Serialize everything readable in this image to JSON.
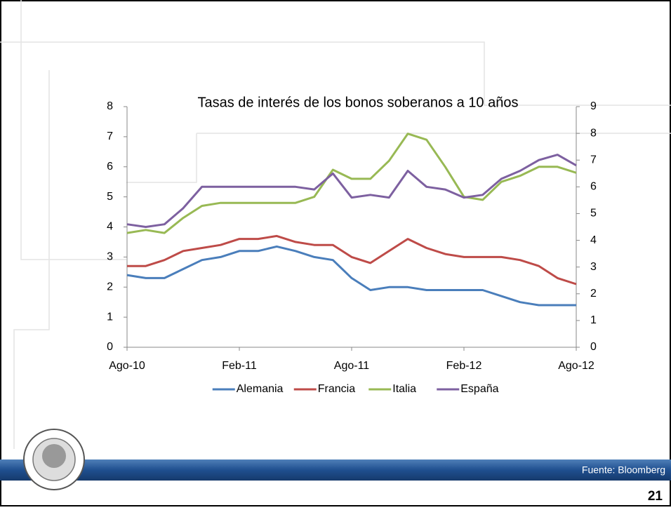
{
  "chart_data": {
    "type": "line",
    "title": "Tasas de interés de los bonos soberanos a 10 años",
    "categories": [
      "Ago-10",
      null,
      null,
      null,
      null,
      null,
      "Feb-11",
      null,
      null,
      null,
      null,
      null,
      "Ago-11",
      null,
      null,
      null,
      null,
      null,
      "Feb-12",
      null,
      null,
      null,
      null,
      null,
      "Ago-12"
    ],
    "series": [
      {
        "name": "Alemania",
        "color": "#4a7ebb",
        "values": [
          2.4,
          2.3,
          2.3,
          2.6,
          2.9,
          3.0,
          3.2,
          3.2,
          3.35,
          3.2,
          3.0,
          2.9,
          2.3,
          1.9,
          2.0,
          2.0,
          1.9,
          1.9,
          1.9,
          1.9,
          1.7,
          1.5,
          1.4,
          1.4,
          1.4
        ]
      },
      {
        "name": "Francia",
        "color": "#be4b48",
        "values": [
          2.7,
          2.7,
          2.9,
          3.2,
          3.3,
          3.4,
          3.6,
          3.6,
          3.7,
          3.5,
          3.4,
          3.4,
          3.0,
          2.8,
          3.2,
          3.6,
          3.3,
          3.1,
          3.0,
          3.0,
          3.0,
          2.9,
          2.7,
          2.3,
          2.1
        ]
      },
      {
        "name": "Italia",
        "color": "#98b954",
        "values": [
          3.8,
          3.9,
          3.8,
          4.3,
          4.7,
          4.8,
          4.8,
          4.8,
          4.8,
          4.8,
          5.0,
          5.9,
          5.6,
          5.6,
          6.2,
          7.1,
          6.9,
          6.0,
          5.0,
          4.9,
          5.5,
          5.7,
          6.0,
          6.0,
          5.8
        ]
      },
      {
        "name": "España",
        "color": "#7d60a0",
        "axis": "y2",
        "values": [
          4.6,
          4.5,
          4.6,
          5.2,
          6.0,
          6.0,
          6.0,
          6.0,
          6.0,
          6.0,
          5.9,
          6.5,
          5.6,
          5.7,
          5.6,
          6.6,
          6.0,
          5.9,
          5.6,
          5.7,
          6.3,
          6.6,
          7.0,
          7.2,
          6.8
        ]
      }
    ],
    "ylim": [
      0,
      8
    ],
    "yticks": [
      0,
      1,
      2,
      3,
      4,
      5,
      6,
      7,
      8
    ],
    "y2lim": [
      0,
      9
    ],
    "y2ticks": [
      0,
      1,
      2,
      3,
      4,
      5,
      6,
      7,
      8,
      9
    ],
    "legend": "bottom"
  },
  "slide": {
    "source": "Fuente: Bloomberg",
    "page_number": "21"
  }
}
